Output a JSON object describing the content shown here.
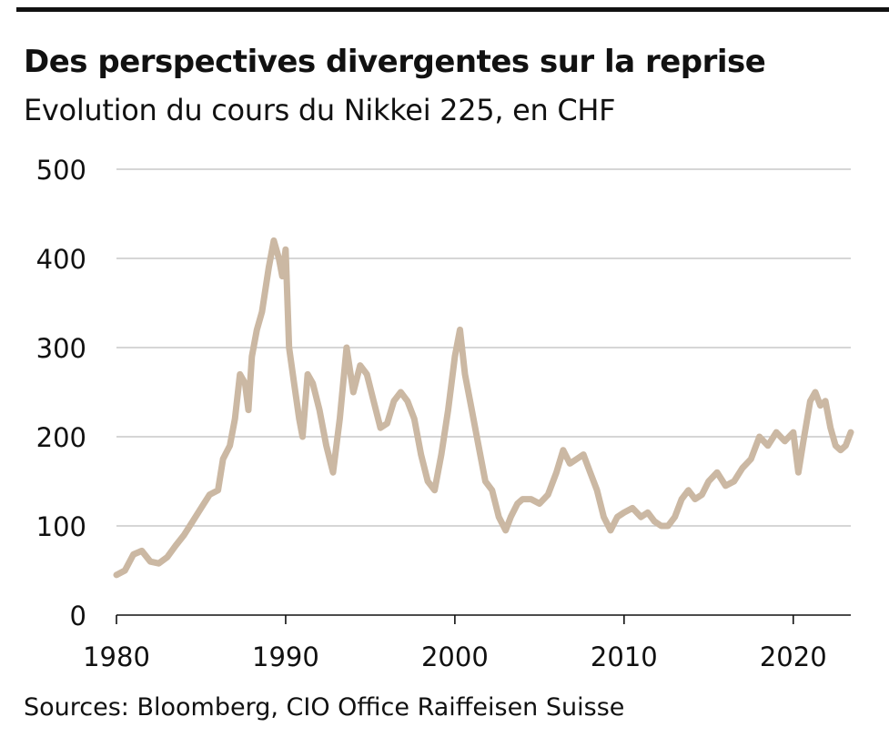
{
  "title": "Des perspectives divergentes sur la reprise",
  "subtitle": "Evolution du cours du Nikkei 225, en CHF",
  "source": "Sources: Bloomberg, CIO Office Raiffeisen Suisse",
  "colors": {
    "line": "#CBB8A3",
    "grid": "#BDBDBD",
    "axis": "#111111",
    "top_rule": "#111111"
  },
  "chart_data": {
    "type": "line",
    "title": "Des perspectives divergentes sur la reprise",
    "subtitle": "Evolution du cours du Nikkei 225, en CHF",
    "xlabel": "",
    "ylabel": "",
    "xlim": [
      1980,
      2023.4
    ],
    "ylim": [
      0,
      500
    ],
    "x_ticks": [
      1980,
      1990,
      2000,
      2010,
      2020
    ],
    "y_ticks": [
      0,
      100,
      200,
      300,
      400,
      500
    ],
    "grid": "horizontal",
    "legend": "none",
    "series": [
      {
        "name": "",
        "x": [
          1980.0,
          1980.5,
          1981.0,
          1981.5,
          1982.0,
          1982.5,
          1983.0,
          1983.5,
          1984.0,
          1984.5,
          1985.0,
          1985.5,
          1986.0,
          1986.3,
          1986.7,
          1987.0,
          1987.3,
          1987.6,
          1987.8,
          1988.0,
          1988.3,
          1988.6,
          1989.0,
          1989.3,
          1989.6,
          1989.8,
          1990.0,
          1990.2,
          1990.5,
          1990.8,
          1991.0,
          1991.3,
          1991.6,
          1992.0,
          1992.4,
          1992.8,
          1993.2,
          1993.6,
          1994.0,
          1994.4,
          1994.8,
          1995.2,
          1995.6,
          1996.0,
          1996.4,
          1996.8,
          1997.2,
          1997.6,
          1998.0,
          1998.4,
          1998.8,
          1999.2,
          1999.6,
          2000.0,
          2000.3,
          2000.6,
          2001.0,
          2001.4,
          2001.8,
          2002.2,
          2002.6,
          2003.0,
          2003.3,
          2003.7,
          2004.0,
          2004.5,
          2005.0,
          2005.5,
          2006.0,
          2006.4,
          2006.8,
          2007.2,
          2007.6,
          2008.0,
          2008.4,
          2008.8,
          2009.2,
          2009.6,
          2010.0,
          2010.5,
          2011.0,
          2011.4,
          2011.8,
          2012.2,
          2012.6,
          2013.0,
          2013.4,
          2013.8,
          2014.2,
          2014.6,
          2015.0,
          2015.5,
          2016.0,
          2016.5,
          2017.0,
          2017.5,
          2018.0,
          2018.5,
          2019.0,
          2019.5,
          2020.0,
          2020.3,
          2020.6,
          2021.0,
          2021.3,
          2021.6,
          2021.9,
          2022.2,
          2022.5,
          2022.8,
          2023.1,
          2023.4
        ],
        "y": [
          45,
          50,
          68,
          72,
          60,
          58,
          65,
          78,
          90,
          105,
          120,
          135,
          140,
          175,
          190,
          220,
          270,
          260,
          230,
          290,
          320,
          340,
          390,
          420,
          400,
          380,
          410,
          300,
          260,
          220,
          200,
          270,
          260,
          230,
          190,
          160,
          220,
          300,
          250,
          280,
          270,
          240,
          210,
          215,
          240,
          250,
          240,
          220,
          180,
          150,
          140,
          180,
          230,
          290,
          320,
          270,
          230,
          190,
          150,
          140,
          110,
          95,
          110,
          125,
          130,
          130,
          125,
          135,
          160,
          185,
          170,
          175,
          180,
          160,
          140,
          110,
          95,
          110,
          115,
          120,
          110,
          115,
          105,
          100,
          100,
          110,
          130,
          140,
          130,
          135,
          150,
          160,
          145,
          150,
          165,
          175,
          200,
          190,
          205,
          195,
          205,
          160,
          195,
          240,
          250,
          235,
          240,
          210,
          190,
          185,
          190,
          205
        ]
      }
    ]
  }
}
